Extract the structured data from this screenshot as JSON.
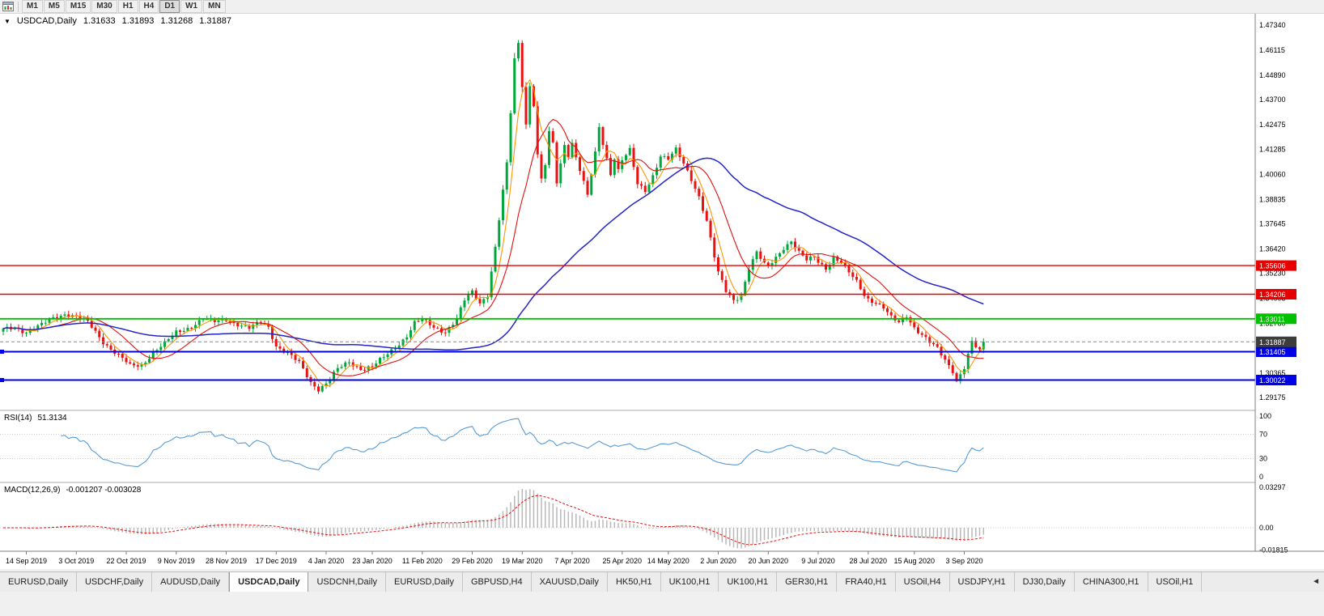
{
  "toolbar": {
    "timeframes": [
      {
        "label": "M1",
        "active": false
      },
      {
        "label": "M5",
        "active": false
      },
      {
        "label": "M15",
        "active": false
      },
      {
        "label": "M30",
        "active": false
      },
      {
        "label": "H1",
        "active": false
      },
      {
        "label": "H4",
        "active": false
      },
      {
        "label": "D1",
        "active": true
      },
      {
        "label": "W1",
        "active": false
      },
      {
        "label": "MN",
        "active": false
      }
    ]
  },
  "chart_header": {
    "dropdown_glyph": "▼",
    "symbol": "USDCAD,Daily",
    "open": "1.31633",
    "high": "1.31893",
    "low": "1.31268",
    "close": "1.31887"
  },
  "indicators": {
    "rsi_label": "RSI(14)",
    "rsi_value": "51.3134",
    "macd_label": "MACD(12,26,9)",
    "macd_values": "-0.001207 -0.003028"
  },
  "tabbar": {
    "scroll_left_glyph": "◄",
    "tabs": [
      {
        "label": "EURUSD,Daily",
        "active": false
      },
      {
        "label": "USDCHF,Daily",
        "active": false
      },
      {
        "label": "AUDUSD,Daily",
        "active": false
      },
      {
        "label": "USDCAD,Daily",
        "active": true
      },
      {
        "label": "USDCNH,Daily",
        "active": false
      },
      {
        "label": "EURUSD,Daily",
        "active": false
      },
      {
        "label": "GBPUSD,H4",
        "active": false
      },
      {
        "label": "XAUUSD,Daily",
        "active": false
      },
      {
        "label": "HK50,H1",
        "active": false
      },
      {
        "label": "UK100,H1",
        "active": false
      },
      {
        "label": "UK100,H1",
        "active": false
      },
      {
        "label": "GER30,H1",
        "active": false
      },
      {
        "label": "FRA40,H1",
        "active": false
      },
      {
        "label": "USOil,H4",
        "active": false
      },
      {
        "label": "USDJPY,H1",
        "active": false
      },
      {
        "label": "DJ30,Daily",
        "active": false
      },
      {
        "label": "CHINA300,H1",
        "active": false
      },
      {
        "label": "USOil,H1",
        "active": false
      }
    ]
  },
  "chart_data": {
    "type": "candlestick",
    "symbol": "USDCAD",
    "timeframe": "Daily",
    "ohlc_display": {
      "open": 1.31633,
      "high": 1.31893,
      "low": 1.31268,
      "close": 1.31887
    },
    "price_axis_ticks": [
      "1.47340",
      "1.46115",
      "1.44890",
      "1.43700",
      "1.42475",
      "1.41285",
      "1.40060",
      "1.38835",
      "1.37645",
      "1.36420",
      "1.35230",
      "1.34005",
      "1.32780",
      "1.31590",
      "1.30365",
      "1.29175"
    ],
    "x_axis_labels": [
      {
        "t": "14 Sep 2019",
        "i": 6
      },
      {
        "t": "3 Oct 2019",
        "i": 19
      },
      {
        "t": "22 Oct 2019",
        "i": 32
      },
      {
        "t": "9 Nov 2019",
        "i": 45
      },
      {
        "t": "28 Nov 2019",
        "i": 58
      },
      {
        "t": "17 Dec 2019",
        "i": 71
      },
      {
        "t": "4 Jan 2020",
        "i": 84
      },
      {
        "t": "23 Jan 2020",
        "i": 96
      },
      {
        "t": "11 Feb 2020",
        "i": 109
      },
      {
        "t": "29 Feb 2020",
        "i": 122
      },
      {
        "t": "19 Mar 2020",
        "i": 135
      },
      {
        "t": "7 Apr 2020",
        "i": 148
      },
      {
        "t": "25 Apr 2020",
        "i": 161
      },
      {
        "t": "14 May 2020",
        "i": 173
      },
      {
        "t": "2 Jun 2020",
        "i": 186
      },
      {
        "t": "20 Jun 2020",
        "i": 199
      },
      {
        "t": "9 Jul 2020",
        "i": 212
      },
      {
        "t": "28 Jul 2020",
        "i": 225
      },
      {
        "t": "15 Aug 2020",
        "i": 237
      },
      {
        "t": "3 Sep 2020",
        "i": 250
      }
    ],
    "horizontal_lines": [
      {
        "price": 1.35606,
        "label": "1.35606",
        "color": "#e60000",
        "width": 1.4,
        "handles": false
      },
      {
        "price": 1.34206,
        "label": "1.34206",
        "color": "#e60000",
        "width": 1.4,
        "handles": false
      },
      {
        "price": 1.33011,
        "label": "1.33011",
        "color": "#00c000",
        "width": 1.8,
        "handles": false
      },
      {
        "price": 1.31405,
        "label": "1.31405",
        "color": "#0000e6",
        "width": 2,
        "handles": true
      },
      {
        "price": 1.30022,
        "label": "1.30022",
        "color": "#0000e6",
        "width": 2,
        "handles": true
      }
    ],
    "current_price": {
      "value": 1.31887,
      "label": "1.31887",
      "badge_color": "#3c3c3c"
    },
    "colors": {
      "up": "#00a83c",
      "down": "#e81212",
      "ma_fast": "#ff9500",
      "ma_mid": "#e01010",
      "ma_slow": "#2424c8",
      "rsi": "#5a9bd4",
      "macd_hist": "#b8b8b8",
      "macd_signal": "#e01010"
    },
    "num_candles": 256,
    "moving_averages": [
      {
        "period": 5,
        "color_key": "ma_fast"
      },
      {
        "period": 13,
        "color_key": "ma_mid"
      },
      {
        "period": 55,
        "color_key": "ma_slow"
      }
    ],
    "rsi": {
      "period": 14,
      "current": 51.3134,
      "axis_ticks": [
        {
          "label": "100",
          "v": 100,
          "dotted": false
        },
        {
          "label": "70",
          "v": 70,
          "dotted": true
        },
        {
          "label": "30",
          "v": 30,
          "dotted": true
        },
        {
          "label": "0",
          "v": 0,
          "dotted": false
        }
      ]
    },
    "macd": {
      "fast": 12,
      "slow": 26,
      "signal": 9,
      "current": -0.001207,
      "signal_current": -0.003028,
      "axis_ticks": [
        {
          "label": "0.03297",
          "v": 0.03297,
          "dotted": false
        },
        {
          "label": "0.00",
          "v": 0,
          "dotted": true
        },
        {
          "label": "-0.01815",
          "v": -0.01815,
          "dotted": false
        }
      ]
    },
    "candle_close_anchors": [
      [
        0,
        1.3245
      ],
      [
        3,
        1.3262
      ],
      [
        6,
        1.3238
      ],
      [
        10,
        1.3268
      ],
      [
        13,
        1.3305
      ],
      [
        16,
        1.3328
      ],
      [
        19,
        1.3312
      ],
      [
        22,
        1.3282
      ],
      [
        26,
        1.3192
      ],
      [
        30,
        1.3122
      ],
      [
        33,
        1.3068
      ],
      [
        36,
        1.3075
      ],
      [
        39,
        1.3142
      ],
      [
        42,
        1.3178
      ],
      [
        45,
        1.3232
      ],
      [
        48,
        1.3258
      ],
      [
        52,
        1.3302
      ],
      [
        55,
        1.3282
      ],
      [
        58,
        1.33
      ],
      [
        61,
        1.3278
      ],
      [
        64,
        1.3252
      ],
      [
        67,
        1.3282
      ],
      [
        69,
        1.3262
      ],
      [
        71,
        1.3172
      ],
      [
        74,
        1.3132
      ],
      [
        77,
        1.3082
      ],
      [
        80,
        1.2992
      ],
      [
        82,
        1.2962
      ],
      [
        84,
        1.2988
      ],
      [
        87,
        1.3052
      ],
      [
        90,
        1.3088
      ],
      [
        93,
        1.3062
      ],
      [
        96,
        1.3068
      ],
      [
        99,
        1.3108
      ],
      [
        102,
        1.3162
      ],
      [
        105,
        1.3222
      ],
      [
        107,
        1.3282
      ],
      [
        109,
        1.3292
      ],
      [
        112,
        1.3258
      ],
      [
        115,
        1.3242
      ],
      [
        118,
        1.3302
      ],
      [
        120,
        1.3388
      ],
      [
        122,
        1.3428
      ],
      [
        124,
        1.3378
      ],
      [
        126,
        1.3422
      ],
      [
        128,
        1.3652
      ],
      [
        130,
        1.3922
      ],
      [
        131,
        1.4052
      ],
      [
        132,
        1.4302
      ],
      [
        133,
        1.4562
      ],
      [
        134,
        1.4642
      ],
      [
        135,
        1.4442
      ],
      [
        136,
        1.4252
      ],
      [
        137,
        1.4442
      ],
      [
        138,
        1.4352
      ],
      [
        139,
        1.4102
      ],
      [
        140,
        1.3982
      ],
      [
        141,
        1.4052
      ],
      [
        142,
        1.4202
      ],
      [
        143,
        1.4152
      ],
      [
        144,
        1.3962
      ],
      [
        145,
        1.4052
      ],
      [
        146,
        1.4152
      ],
      [
        147,
        1.4102
      ],
      [
        148,
        1.4162
      ],
      [
        150,
        1.4032
      ],
      [
        152,
        1.3902
      ],
      [
        153,
        1.4002
      ],
      [
        154,
        1.4102
      ],
      [
        155,
        1.4232
      ],
      [
        156,
        1.4152
      ],
      [
        157,
        1.4082
      ],
      [
        158,
        1.4012
      ],
      [
        159,
        1.4092
      ],
      [
        160,
        1.4032
      ],
      [
        161,
        1.4082
      ],
      [
        163,
        1.4122
      ],
      [
        165,
        1.3952
      ],
      [
        167,
        1.3922
      ],
      [
        169,
        1.4002
      ],
      [
        171,
        1.4102
      ],
      [
        173,
        1.4082
      ],
      [
        175,
        1.4122
      ],
      [
        177,
        1.4052
      ],
      [
        179,
        1.3982
      ],
      [
        181,
        1.3902
      ],
      [
        183,
        1.3782
      ],
      [
        185,
        1.3602
      ],
      [
        186,
        1.3522
      ],
      [
        188,
        1.3432
      ],
      [
        190,
        1.3392
      ],
      [
        192,
        1.3422
      ],
      [
        194,
        1.3552
      ],
      [
        196,
        1.3622
      ],
      [
        198,
        1.3562
      ],
      [
        199,
        1.3552
      ],
      [
        201,
        1.3602
      ],
      [
        203,
        1.3652
      ],
      [
        205,
        1.3682
      ],
      [
        207,
        1.3622
      ],
      [
        209,
        1.3582
      ],
      [
        211,
        1.3602
      ],
      [
        212,
        1.3582
      ],
      [
        214,
        1.3552
      ],
      [
        216,
        1.3602
      ],
      [
        218,
        1.3572
      ],
      [
        220,
        1.3522
      ],
      [
        222,
        1.3482
      ],
      [
        224,
        1.3422
      ],
      [
        225,
        1.3402
      ],
      [
        227,
        1.3382
      ],
      [
        229,
        1.3352
      ],
      [
        231,
        1.3302
      ],
      [
        233,
        1.3282
      ],
      [
        235,
        1.3322
      ],
      [
        237,
        1.3262
      ],
      [
        239,
        1.3222
      ],
      [
        241,
        1.3182
      ],
      [
        243,
        1.3152
      ],
      [
        245,
        1.3102
      ],
      [
        247,
        1.3052
      ],
      [
        248,
        1.3002
      ],
      [
        249,
        1.3032
      ],
      [
        250,
        1.3062
      ],
      [
        251,
        1.3122
      ],
      [
        252,
        1.3182
      ],
      [
        253,
        1.3162
      ],
      [
        254,
        1.3152
      ],
      [
        255,
        1.31887
      ]
    ]
  }
}
